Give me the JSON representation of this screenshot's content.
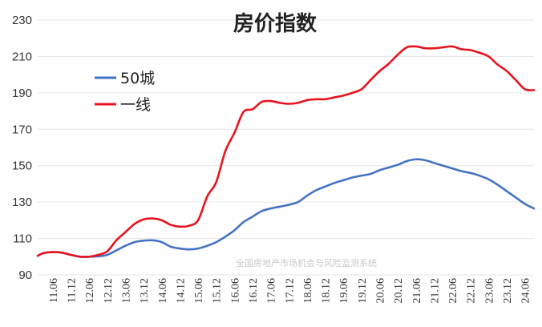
{
  "chart_data": {
    "type": "line",
    "title": "房价指数",
    "watermark": "全国房地产市场机会与风险监测系统",
    "ylim": [
      90,
      230
    ],
    "yticks": [
      90,
      110,
      130,
      150,
      170,
      190,
      210,
      230
    ],
    "grid": true,
    "legend": "top-left",
    "x_labels": [
      "11.06",
      "11.12",
      "12.06",
      "12.12",
      "13.06",
      "13.12",
      "14.06",
      "14.12",
      "15.06",
      "15.12",
      "16.06",
      "16.12",
      "17.06",
      "17.12",
      "18.06",
      "18.12",
      "19.06",
      "19.12",
      "20.06",
      "20.12",
      "21.06",
      "21.12",
      "22.06",
      "22.12",
      "23.06",
      "23.12",
      "24.06"
    ],
    "series": [
      {
        "name": "50城",
        "color": "#4472C4",
        "points": [
          [
            "11.01",
            100.5
          ],
          [
            "11.03",
            102
          ],
          [
            "11.06",
            102.5
          ],
          [
            "11.09",
            102.2
          ],
          [
            "11.12",
            101
          ],
          [
            "12.03",
            100
          ],
          [
            "12.06",
            100
          ],
          [
            "12.09",
            100.2
          ],
          [
            "12.12",
            101
          ],
          [
            "13.03",
            103.5
          ],
          [
            "13.06",
            106
          ],
          [
            "13.09",
            108
          ],
          [
            "13.12",
            108.8
          ],
          [
            "14.03",
            109
          ],
          [
            "14.06",
            108
          ],
          [
            "14.09",
            105.5
          ],
          [
            "14.12",
            104.5
          ],
          [
            "15.03",
            104
          ],
          [
            "15.06",
            104.5
          ],
          [
            "15.09",
            106
          ],
          [
            "15.12",
            108
          ],
          [
            "16.03",
            111
          ],
          [
            "16.06",
            114.5
          ],
          [
            "16.09",
            119
          ],
          [
            "16.12",
            122
          ],
          [
            "17.03",
            125
          ],
          [
            "17.06",
            126.5
          ],
          [
            "17.09",
            127.5
          ],
          [
            "17.12",
            128.5
          ],
          [
            "18.03",
            130
          ],
          [
            "18.06",
            133.5
          ],
          [
            "18.09",
            136.5
          ],
          [
            "18.12",
            138.5
          ],
          [
            "19.03",
            140.5
          ],
          [
            "19.06",
            142
          ],
          [
            "19.09",
            143.5
          ],
          [
            "19.12",
            144.5
          ],
          [
            "20.03",
            145.5
          ],
          [
            "20.06",
            147.5
          ],
          [
            "20.09",
            149
          ],
          [
            "20.12",
            150.5
          ],
          [
            "21.03",
            152.5
          ],
          [
            "21.06",
            153.5
          ],
          [
            "21.09",
            153
          ],
          [
            "21.12",
            151.5
          ],
          [
            "22.03",
            150
          ],
          [
            "22.06",
            148.5
          ],
          [
            "22.09",
            147
          ],
          [
            "22.12",
            146
          ],
          [
            "23.03",
            144.5
          ],
          [
            "23.06",
            142.5
          ],
          [
            "23.09",
            139.5
          ],
          [
            "23.12",
            136
          ],
          [
            "24.03",
            132.5
          ],
          [
            "24.06",
            129
          ],
          [
            "24.09",
            126.5
          ]
        ]
      },
      {
        "name": "一线",
        "color": "#E8131D",
        "points": [
          [
            "11.01",
            100.5
          ],
          [
            "11.03",
            102
          ],
          [
            "11.06",
            102.5
          ],
          [
            "11.09",
            102.2
          ],
          [
            "11.12",
            101
          ],
          [
            "12.03",
            100
          ],
          [
            "12.06",
            100
          ],
          [
            "12.09",
            101
          ],
          [
            "12.12",
            103
          ],
          [
            "13.03",
            109
          ],
          [
            "13.06",
            113.5
          ],
          [
            "13.09",
            118
          ],
          [
            "13.12",
            120.5
          ],
          [
            "14.03",
            121
          ],
          [
            "14.06",
            120
          ],
          [
            "14.09",
            117.5
          ],
          [
            "14.12",
            116.5
          ],
          [
            "15.03",
            117
          ],
          [
            "15.06",
            120
          ],
          [
            "15.09",
            133
          ],
          [
            "15.12",
            141
          ],
          [
            "16.03",
            158
          ],
          [
            "16.06",
            168
          ],
          [
            "16.09",
            179.5
          ],
          [
            "16.12",
            181
          ],
          [
            "17.03",
            185
          ],
          [
            "17.06",
            185.5
          ],
          [
            "17.09",
            184.5
          ],
          [
            "17.12",
            184
          ],
          [
            "18.03",
            184.5
          ],
          [
            "18.06",
            186
          ],
          [
            "18.09",
            186.5
          ],
          [
            "18.12",
            186.5
          ],
          [
            "19.03",
            187.5
          ],
          [
            "19.06",
            188.5
          ],
          [
            "19.09",
            190
          ],
          [
            "19.12",
            192
          ],
          [
            "20.03",
            197
          ],
          [
            "20.06",
            202
          ],
          [
            "20.09",
            206
          ],
          [
            "20.12",
            211
          ],
          [
            "21.03",
            215
          ],
          [
            "21.06",
            215.5
          ],
          [
            "21.09",
            214.5
          ],
          [
            "21.12",
            214.5
          ],
          [
            "22.03",
            215
          ],
          [
            "22.06",
            215.5
          ],
          [
            "22.09",
            214
          ],
          [
            "22.12",
            213.5
          ],
          [
            "23.03",
            212
          ],
          [
            "23.06",
            210
          ],
          [
            "23.09",
            205.5
          ],
          [
            "23.12",
            202
          ],
          [
            "24.03",
            197
          ],
          [
            "24.06",
            192
          ],
          [
            "24.09",
            191.5
          ]
        ]
      }
    ]
  }
}
